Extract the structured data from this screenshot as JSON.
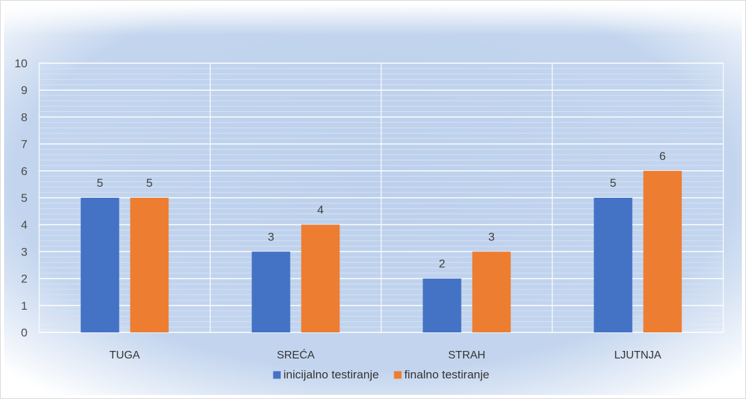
{
  "chart_data": {
    "type": "bar",
    "title": "",
    "xlabel": "",
    "ylabel": "",
    "categories": [
      "TUGA",
      "SREĆA",
      "STRAH",
      "LJUTNJA"
    ],
    "series": [
      {
        "name": "inicijalno testiranje",
        "values": [
          5,
          3,
          2,
          5
        ],
        "color": "#4472C4"
      },
      {
        "name": "finalno testiranje",
        "values": [
          5,
          4,
          3,
          6
        ],
        "color": "#ED7D31"
      }
    ],
    "ylim": [
      0,
      10
    ],
    "yticks": [
      0,
      1,
      2,
      3,
      4,
      5,
      6,
      7,
      8,
      9,
      10
    ],
    "grid": true,
    "legend_position": "bottom",
    "data_labels": true,
    "background_color": "#BCD0EC",
    "gridline_color": "#FFFFFF"
  }
}
